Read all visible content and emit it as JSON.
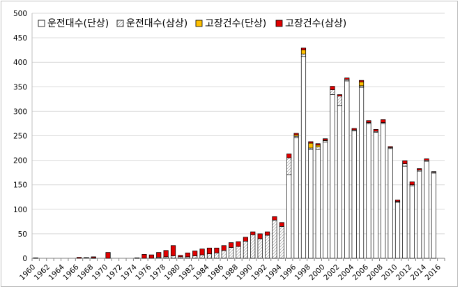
{
  "chart_data": {
    "type": "bar",
    "stacked": true,
    "title": "",
    "xlabel": "",
    "ylabel": "",
    "ylim": [
      0,
      500
    ],
    "yticks": [
      0,
      50,
      100,
      150,
      200,
      250,
      300,
      350,
      400,
      450,
      500
    ],
    "xtick_labels": [
      "1960",
      "1962",
      "1964",
      "1966",
      "1968",
      "1970",
      "1972",
      "1974",
      "1976",
      "1978",
      "1980",
      "1982",
      "1984",
      "1986",
      "1988",
      "1990",
      "1992",
      "1994",
      "1996",
      "1998",
      "2000",
      "2002",
      "2004",
      "2006",
      "2008",
      "2010",
      "2012",
      "2014",
      "2016"
    ],
    "grid": true,
    "legend_position": "top-left",
    "colors": {
      "single_units": "#ffffff",
      "triple_units": "#d9d9d9",
      "failures_single": "#ffc000",
      "failures_triple": "#e00000",
      "bar_edge": "#000000",
      "grid": "#d9d9d9"
    },
    "years": [
      1960,
      1961,
      1962,
      1963,
      1964,
      1965,
      1966,
      1967,
      1968,
      1969,
      1970,
      1971,
      1972,
      1973,
      1974,
      1975,
      1976,
      1977,
      1978,
      1979,
      1980,
      1981,
      1982,
      1983,
      1984,
      1985,
      1986,
      1987,
      1988,
      1989,
      1990,
      1991,
      1992,
      1993,
      1994,
      1995,
      1996,
      1997,
      1998,
      1999,
      2000,
      2001,
      2002,
      2003,
      2004,
      2005,
      2006,
      2007,
      2008,
      2009,
      2010,
      2011,
      2012,
      2013,
      2014,
      2015
    ],
    "series": [
      {
        "name": "운전대수(단상)",
        "values": [
          0,
          0,
          0,
          0,
          0,
          0,
          0,
          0,
          0,
          0,
          0,
          0,
          0,
          0,
          0,
          0,
          0,
          0,
          0,
          0,
          0,
          0,
          0,
          0,
          0,
          0,
          0,
          0,
          0,
          0,
          0,
          0,
          0,
          0,
          0,
          170,
          246,
          412,
          222,
          222,
          237,
          334,
          311,
          362,
          260,
          349,
          275,
          257,
          275,
          224,
          114,
          188,
          148,
          178,
          198,
          174
        ]
      },
      {
        "name": "운전대수(삼상)",
        "values": [
          1,
          0,
          0,
          0,
          0,
          0,
          0,
          2,
          1,
          0,
          0,
          0,
          0,
          0,
          1,
          0,
          0,
          2,
          3,
          5,
          3,
          3,
          5,
          7,
          9,
          11,
          16,
          22,
          24,
          35,
          48,
          40,
          47,
          78,
          65,
          35,
          3,
          5,
          3,
          5,
          3,
          10,
          20,
          3,
          2,
          3,
          2,
          2,
          2,
          2,
          2,
          5,
          2,
          2,
          2,
          2
        ]
      },
      {
        "name": "고장건수(단상)",
        "values": [
          0,
          0,
          0,
          0,
          0,
          0,
          0,
          0,
          0,
          0,
          0,
          0,
          0,
          0,
          0,
          0,
          0,
          0,
          0,
          0,
          0,
          0,
          0,
          0,
          0,
          0,
          0,
          0,
          0,
          0,
          0,
          0,
          0,
          0,
          0,
          0,
          3,
          8,
          10,
          4,
          1,
          0,
          0,
          0,
          0,
          8,
          0,
          0,
          0,
          0,
          0,
          0,
          0,
          0,
          0,
          0
        ]
      },
      {
        "name": "고장건수(삼상)",
        "values": [
          0,
          0,
          0,
          0,
          0,
          0,
          2,
          0,
          2,
          0,
          12,
          0,
          0,
          0,
          0,
          8,
          7,
          10,
          13,
          21,
          3,
          8,
          10,
          12,
          12,
          10,
          10,
          10,
          10,
          8,
          6,
          10,
          7,
          7,
          8,
          8,
          3,
          4,
          3,
          3,
          3,
          7,
          3,
          3,
          3,
          3,
          4,
          4,
          6,
          2,
          3,
          6,
          6,
          3,
          3,
          1
        ]
      }
    ]
  }
}
